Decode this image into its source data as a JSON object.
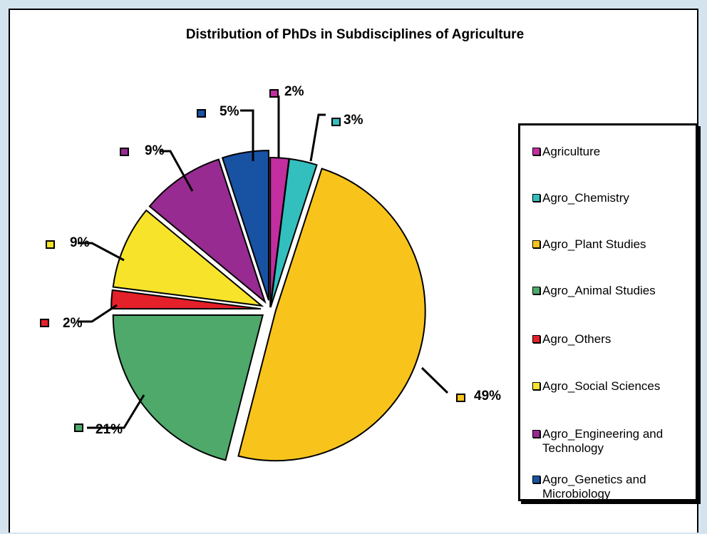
{
  "chart_data": {
    "type": "pie",
    "title": "Distribution of PhDs in Subdisciplines of Agriculture",
    "legend_position": "right",
    "slices": [
      {
        "name": "Agriculture",
        "value": 2,
        "label": "2%",
        "color": "#c22ea0"
      },
      {
        "name": "Agro_Chemistry",
        "value": 3,
        "label": "3%",
        "color": "#33bfbd"
      },
      {
        "name": "Agro_Plant Studies",
        "value": 49,
        "label": "49%",
        "color": "#f8c41b"
      },
      {
        "name": "Agro_Animal Studies",
        "value": 21,
        "label": "21%",
        "color": "#4ea96b"
      },
      {
        "name": "Agro_Others",
        "value": 2,
        "label": "2%",
        "color": "#e4202a"
      },
      {
        "name": "Agro_Social Sciences",
        "value": 9,
        "label": "9%",
        "color": "#f7e42a"
      },
      {
        "name": "Agro_Engineering and Technology",
        "value": 9,
        "label": "9%",
        "color": "#972b91"
      },
      {
        "name": "Agro_Genetics and Microbiology",
        "value": 5,
        "label": "5%",
        "color": "#1852a3"
      }
    ]
  },
  "colors": {
    "page_background": "#d3e4ef",
    "plot_background": "#ffffff"
  }
}
